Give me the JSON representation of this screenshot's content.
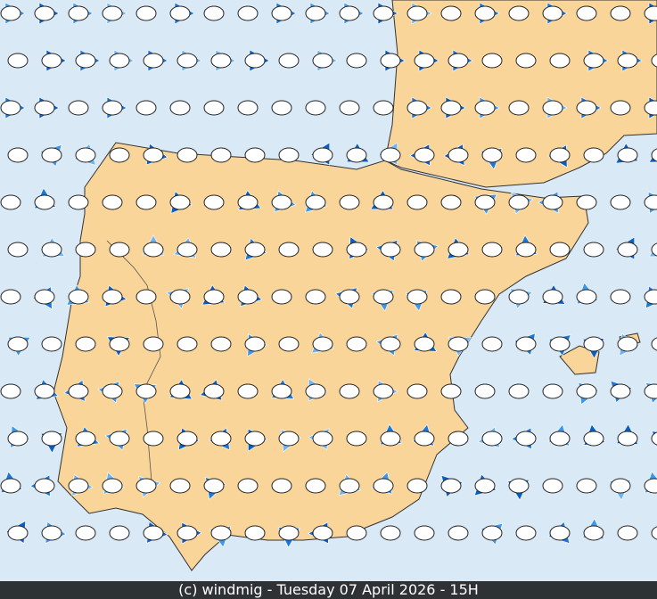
{
  "footer": {
    "text": "(c) windmig - Tuesday 07 April 2026 - 15H"
  }
}
